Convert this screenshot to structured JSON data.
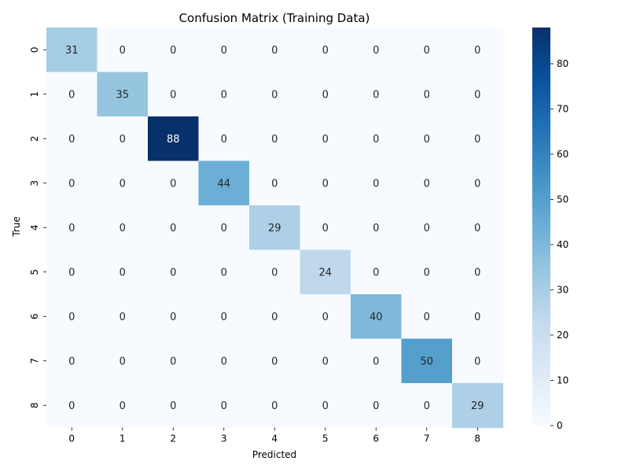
{
  "chart_data": {
    "type": "heatmap",
    "title": "Confusion Matrix (Training Data)",
    "xlabel": "Predicted",
    "ylabel": "True",
    "x_tick_labels": [
      "0",
      "1",
      "2",
      "3",
      "4",
      "5",
      "6",
      "7",
      "8"
    ],
    "y_tick_labels": [
      "0",
      "1",
      "2",
      "3",
      "4",
      "5",
      "6",
      "7",
      "8"
    ],
    "values": [
      [
        31,
        0,
        0,
        0,
        0,
        0,
        0,
        0,
        0
      ],
      [
        0,
        35,
        0,
        0,
        0,
        0,
        0,
        0,
        0
      ],
      [
        0,
        0,
        88,
        0,
        0,
        0,
        0,
        0,
        0
      ],
      [
        0,
        0,
        0,
        44,
        0,
        0,
        0,
        0,
        0
      ],
      [
        0,
        0,
        0,
        0,
        29,
        0,
        0,
        0,
        0
      ],
      [
        0,
        0,
        0,
        0,
        0,
        24,
        0,
        0,
        0
      ],
      [
        0,
        0,
        0,
        0,
        0,
        0,
        40,
        0,
        0
      ],
      [
        0,
        0,
        0,
        0,
        0,
        0,
        0,
        50,
        0
      ],
      [
        0,
        0,
        0,
        0,
        0,
        0,
        0,
        0,
        29
      ]
    ],
    "colormap": "Blues",
    "color_range": [
      0,
      88
    ],
    "colorbar_ticks": [
      0,
      10,
      20,
      30,
      40,
      50,
      60,
      70,
      80
    ],
    "colors": {
      "low": "#f7fbff",
      "high": "#08306b",
      "text_dark": "#262626",
      "text_light": "#ffffff"
    },
    "annotations": true,
    "grid": false,
    "legend": "colorbar-right"
  }
}
